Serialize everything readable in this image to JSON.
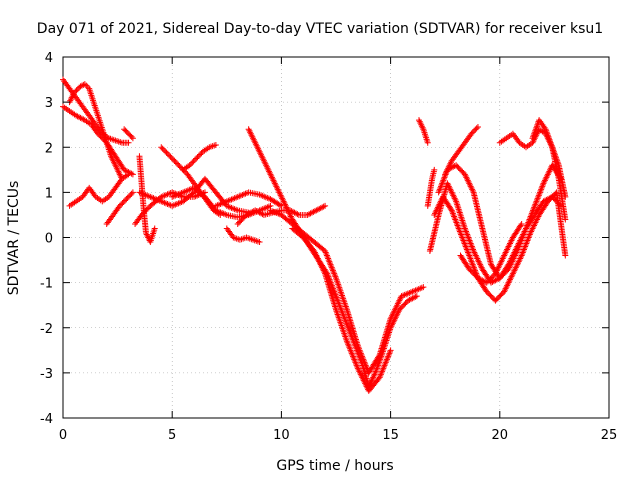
{
  "chart_data": {
    "type": "scatter",
    "title": "Day 071 of 2021, Sidereal Day-to-day VTEC variation (SDTVAR) for receiver ksu1",
    "xlabel": "GPS time / hours",
    "ylabel": "SDTVAR / TECUs",
    "xlim": [
      0,
      25
    ],
    "ylim": [
      -4,
      4
    ],
    "xticks": [
      0,
      5,
      10,
      15,
      20,
      25
    ],
    "yticks": [
      -4,
      -3,
      -2,
      -1,
      0,
      1,
      2,
      3,
      4
    ],
    "grid": true,
    "marker": "+",
    "color": "#ff0000",
    "series": [
      {
        "x": [
          0,
          0.3,
          0.6,
          0.9,
          1.2,
          1.5,
          1.8,
          2.1,
          2.4,
          2.7,
          3.0
        ],
        "y": [
          3.5,
          3.3,
          3.1,
          2.9,
          2.7,
          2.5,
          2.3,
          2.2,
          2.15,
          2.1,
          2.1
        ]
      },
      {
        "x": [
          0.0,
          0.3,
          0.6,
          1.0,
          1.3,
          1.6,
          2.0,
          2.4,
          2.8,
          3.2
        ],
        "y": [
          2.9,
          2.8,
          2.7,
          2.6,
          2.5,
          2.3,
          2.1,
          1.8,
          1.5,
          1.4
        ]
      },
      {
        "x": [
          0.3,
          0.5,
          0.8,
          1.0,
          1.2,
          1.4,
          1.6,
          1.8,
          2.0,
          2.2,
          2.5,
          2.7
        ],
        "y": [
          3.0,
          3.2,
          3.35,
          3.4,
          3.3,
          3.0,
          2.7,
          2.4,
          2.1,
          1.8,
          1.5,
          1.3
        ]
      },
      {
        "x": [
          0.3,
          0.6,
          0.9,
          1.2,
          1.5,
          1.8,
          2.1,
          2.4,
          2.7,
          3.0
        ],
        "y": [
          0.7,
          0.8,
          0.9,
          1.1,
          0.9,
          0.8,
          0.9,
          1.1,
          1.3,
          1.4
        ]
      },
      {
        "x": [
          2.0,
          2.3,
          2.6,
          2.9,
          3.2
        ],
        "y": [
          0.3,
          0.5,
          0.7,
          0.85,
          1.0
        ]
      },
      {
        "x": [
          3.5,
          3.6,
          3.7,
          3.8,
          4.0,
          4.2
        ],
        "y": [
          1.8,
          1.2,
          0.6,
          0.1,
          -0.1,
          0.2
        ]
      },
      {
        "x": [
          3.3,
          3.6,
          4.0,
          4.5,
          5.0,
          5.5,
          6.0,
          6.5
        ],
        "y": [
          0.3,
          0.5,
          0.7,
          0.9,
          1.0,
          0.9,
          0.9,
          1.0
        ]
      },
      {
        "x": [
          3.5,
          4.0,
          4.5,
          5.0,
          5.5,
          6.0,
          6.5,
          7.0,
          7.5,
          8.0,
          8.5
        ],
        "y": [
          1.0,
          0.9,
          0.8,
          0.7,
          0.8,
          1.0,
          1.3,
          1.0,
          0.7,
          0.6,
          0.55
        ]
      },
      {
        "x": [
          4.5,
          4.8,
          5.1,
          5.4,
          5.7,
          6.0,
          6.3,
          6.6,
          6.9,
          7.2
        ],
        "y": [
          2.0,
          1.85,
          1.7,
          1.55,
          1.4,
          1.2,
          1.0,
          0.8,
          0.6,
          0.5
        ]
      },
      {
        "x": [
          5.5,
          5.8,
          6.1,
          6.4,
          6.7,
          7.0
        ],
        "y": [
          1.5,
          1.6,
          1.75,
          1.9,
          2.0,
          2.05
        ]
      },
      {
        "x": [
          5.0,
          5.5,
          6.0,
          6.5,
          7.0,
          7.5,
          8.0,
          8.5,
          9.0,
          9.5
        ],
        "y": [
          0.9,
          1.0,
          1.1,
          0.9,
          0.6,
          0.5,
          0.45,
          0.5,
          0.6,
          0.7
        ]
      },
      {
        "x": [
          7.5,
          7.8,
          8.1,
          8.4,
          8.7,
          9.0
        ],
        "y": [
          0.2,
          0.0,
          -0.05,
          0.0,
          -0.05,
          -0.1
        ]
      },
      {
        "x": [
          8.0,
          8.4,
          8.8,
          9.2,
          9.6,
          10.0,
          10.4,
          10.8,
          11.2,
          11.6,
          12.0
        ],
        "y": [
          0.3,
          0.5,
          0.6,
          0.5,
          0.55,
          0.6,
          0.6,
          0.5,
          0.5,
          0.6,
          0.7
        ]
      },
      {
        "x": [
          7.0,
          7.5,
          8.0,
          8.5,
          9.0,
          9.5,
          10.0
        ],
        "y": [
          0.7,
          0.8,
          0.9,
          1.0,
          0.95,
          0.85,
          0.7
        ]
      },
      {
        "x": [
          8.5,
          8.9,
          9.3,
          9.7,
          10.1,
          10.5,
          10.9,
          11.3,
          11.7,
          12.1,
          12.5,
          12.9,
          13.3,
          13.7,
          14.0,
          14.3,
          14.6,
          15.0,
          15.4,
          15.8,
          16.2
        ],
        "y": [
          2.4,
          2.0,
          1.6,
          1.2,
          0.8,
          0.4,
          0.1,
          -0.2,
          -0.5,
          -0.8,
          -1.3,
          -1.8,
          -2.3,
          -2.8,
          -3.3,
          -3.0,
          -2.6,
          -2.0,
          -1.6,
          -1.4,
          -1.3
        ]
      },
      {
        "x": [
          9.5,
          10.0,
          10.5,
          11.0,
          11.5,
          12.0,
          12.5,
          13.0,
          13.5,
          14.0,
          14.5,
          15.0,
          15.5,
          16.0,
          16.5
        ],
        "y": [
          0.6,
          0.5,
          0.3,
          0.1,
          -0.1,
          -0.3,
          -0.9,
          -1.6,
          -2.4,
          -3.0,
          -2.6,
          -1.8,
          -1.3,
          -1.2,
          -1.1
        ]
      },
      {
        "x": [
          10.5,
          11.0,
          11.5,
          12.0,
          12.5,
          13.0,
          13.5,
          14.0,
          14.5,
          15.0
        ],
        "y": [
          0.2,
          0.0,
          -0.3,
          -0.8,
          -1.6,
          -2.3,
          -2.9,
          -3.4,
          -3.1,
          -2.5
        ]
      },
      {
        "x": [
          16.3,
          16.5,
          16.7
        ],
        "y": [
          2.6,
          2.4,
          2.1
        ]
      },
      {
        "x": [
          16.7,
          16.8,
          16.9,
          17.0
        ],
        "y": [
          0.7,
          1.0,
          1.3,
          1.5
        ]
      },
      {
        "x": [
          16.8,
          17.2,
          17.6,
          18.0,
          18.4,
          18.8,
          19.2,
          19.6,
          20.0,
          20.4,
          20.8,
          21.2,
          21.6,
          22.0,
          22.4,
          22.8
        ],
        "y": [
          -0.3,
          0.5,
          1.2,
          0.8,
          0.2,
          -0.3,
          -0.7,
          -1.0,
          -0.9,
          -0.6,
          -0.2,
          0.2,
          0.5,
          0.8,
          0.9,
          0.7
        ]
      },
      {
        "x": [
          17.0,
          17.4,
          17.8,
          18.2,
          18.6,
          19.0,
          19.4,
          19.8,
          20.2,
          20.6,
          21.0,
          21.4,
          21.8,
          22.2,
          22.6,
          23.0
        ],
        "y": [
          0.5,
          0.9,
          0.6,
          0.1,
          -0.4,
          -0.9,
          -1.2,
          -1.4,
          -1.2,
          -0.8,
          -0.4,
          0.1,
          0.5,
          0.8,
          1.0,
          -0.4
        ]
      },
      {
        "x": [
          17.2,
          17.6,
          18.0,
          18.4,
          18.8,
          19.2,
          19.6,
          20.0,
          20.4,
          20.8,
          21.2,
          21.6,
          22.0,
          22.4,
          22.8
        ],
        "y": [
          1.0,
          1.5,
          1.6,
          1.4,
          1.0,
          0.2,
          -0.6,
          -0.9,
          -0.7,
          -0.3,
          0.2,
          0.7,
          1.2,
          1.6,
          1.3
        ]
      },
      {
        "x": [
          17.5,
          17.8,
          18.1,
          18.4,
          18.7,
          19.0
        ],
        "y": [
          1.4,
          1.7,
          1.9,
          2.1,
          2.3,
          2.45
        ]
      },
      {
        "x": [
          20.0,
          20.3,
          20.6,
          20.9,
          21.2,
          21.5,
          21.8,
          22.1,
          22.4,
          22.7,
          23.0
        ],
        "y": [
          2.1,
          2.2,
          2.3,
          2.1,
          2.0,
          2.1,
          2.4,
          2.3,
          2.0,
          1.6,
          0.9
        ]
      },
      {
        "x": [
          21.5,
          21.8,
          22.1,
          22.4,
          22.7,
          23.0
        ],
        "y": [
          2.2,
          2.6,
          2.4,
          2.0,
          1.3,
          0.4
        ]
      },
      {
        "x": [
          2.8,
          3.2
        ],
        "y": [
          2.4,
          2.2
        ]
      },
      {
        "x": [
          18.2,
          18.6,
          19.0,
          19.4,
          19.8,
          20.2,
          20.6,
          21.0
        ],
        "y": [
          -0.4,
          -0.7,
          -0.9,
          -1.0,
          -0.8,
          -0.4,
          0.0,
          0.3
        ]
      }
    ]
  }
}
